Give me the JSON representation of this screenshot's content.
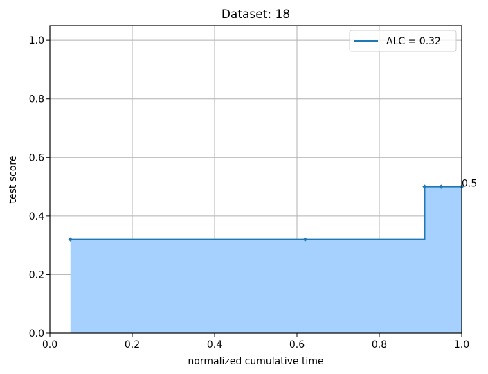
{
  "chart_data": {
    "type": "line",
    "title": "Dataset: 18",
    "xlabel": "normalized cumulative time",
    "ylabel": "test score",
    "xlim": [
      0,
      1
    ],
    "ylim": [
      0,
      1.05
    ],
    "xticks": [
      0.0,
      0.2,
      0.4,
      0.6,
      0.8,
      1.0
    ],
    "xtick_labels": [
      "0.0",
      "0.2",
      "0.4",
      "0.6",
      "0.8",
      "1.0"
    ],
    "yticks": [
      0.0,
      0.2,
      0.4,
      0.6,
      0.8,
      1.0
    ],
    "ytick_labels": [
      "0.0",
      "0.2",
      "0.4",
      "0.6",
      "0.8",
      "1.0"
    ],
    "grid": true,
    "legend_position": "top-right",
    "series": [
      {
        "name": "ALC = 0.32",
        "step": true,
        "filled": true,
        "points": [
          {
            "x": 0.05,
            "y": 0.32
          },
          {
            "x": 0.62,
            "y": 0.32
          },
          {
            "x": 0.91,
            "y": 0.5
          },
          {
            "x": 0.95,
            "y": 0.5
          },
          {
            "x": 1.0,
            "y": 0.5
          }
        ],
        "color": "#1f77b4",
        "fill_color": "#a6d1fe"
      }
    ],
    "annotations": [
      {
        "text": "0.5",
        "x": 1.0,
        "y": 0.5
      }
    ]
  }
}
